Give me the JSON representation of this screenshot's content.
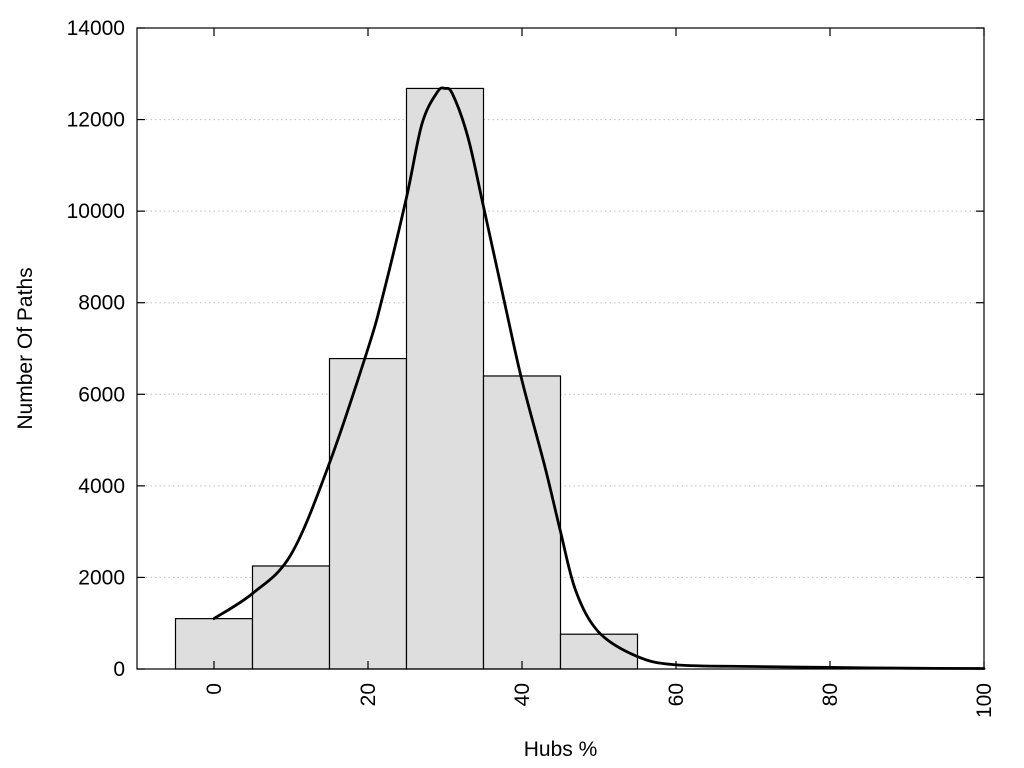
{
  "chart_data": {
    "type": "bar",
    "title": "",
    "xlabel": "Hubs %",
    "ylabel": "Number Of Paths",
    "xlim": [
      -10,
      100
    ],
    "ylim": [
      0,
      14000
    ],
    "xticks": [
      0,
      20,
      40,
      60,
      80,
      100
    ],
    "yticks": [
      0,
      2000,
      4000,
      6000,
      8000,
      10000,
      12000,
      14000
    ],
    "grid": "horizontal-dotted",
    "legend": "none",
    "bar_color": "#dedede",
    "bar_width": 10,
    "bars": [
      {
        "x": 0,
        "value": 1100
      },
      {
        "x": 10,
        "value": 2250
      },
      {
        "x": 20,
        "value": 6780
      },
      {
        "x": 30,
        "value": 12680
      },
      {
        "x": 40,
        "value": 6400
      },
      {
        "x": 50,
        "value": 760
      }
    ],
    "curve": {
      "x": [
        0,
        5,
        10,
        15,
        20,
        22,
        25,
        27,
        29,
        30,
        31,
        33,
        35,
        38,
        40,
        43,
        45,
        47,
        50,
        55,
        60,
        70,
        80,
        90,
        100
      ],
      "y": [
        1100,
        1650,
        2500,
        4500,
        7000,
        8200,
        10300,
        11900,
        12600,
        12680,
        12550,
        11600,
        10100,
        7800,
        6300,
        4400,
        3000,
        1700,
        800,
        270,
        90,
        55,
        35,
        18,
        10
      ]
    }
  }
}
